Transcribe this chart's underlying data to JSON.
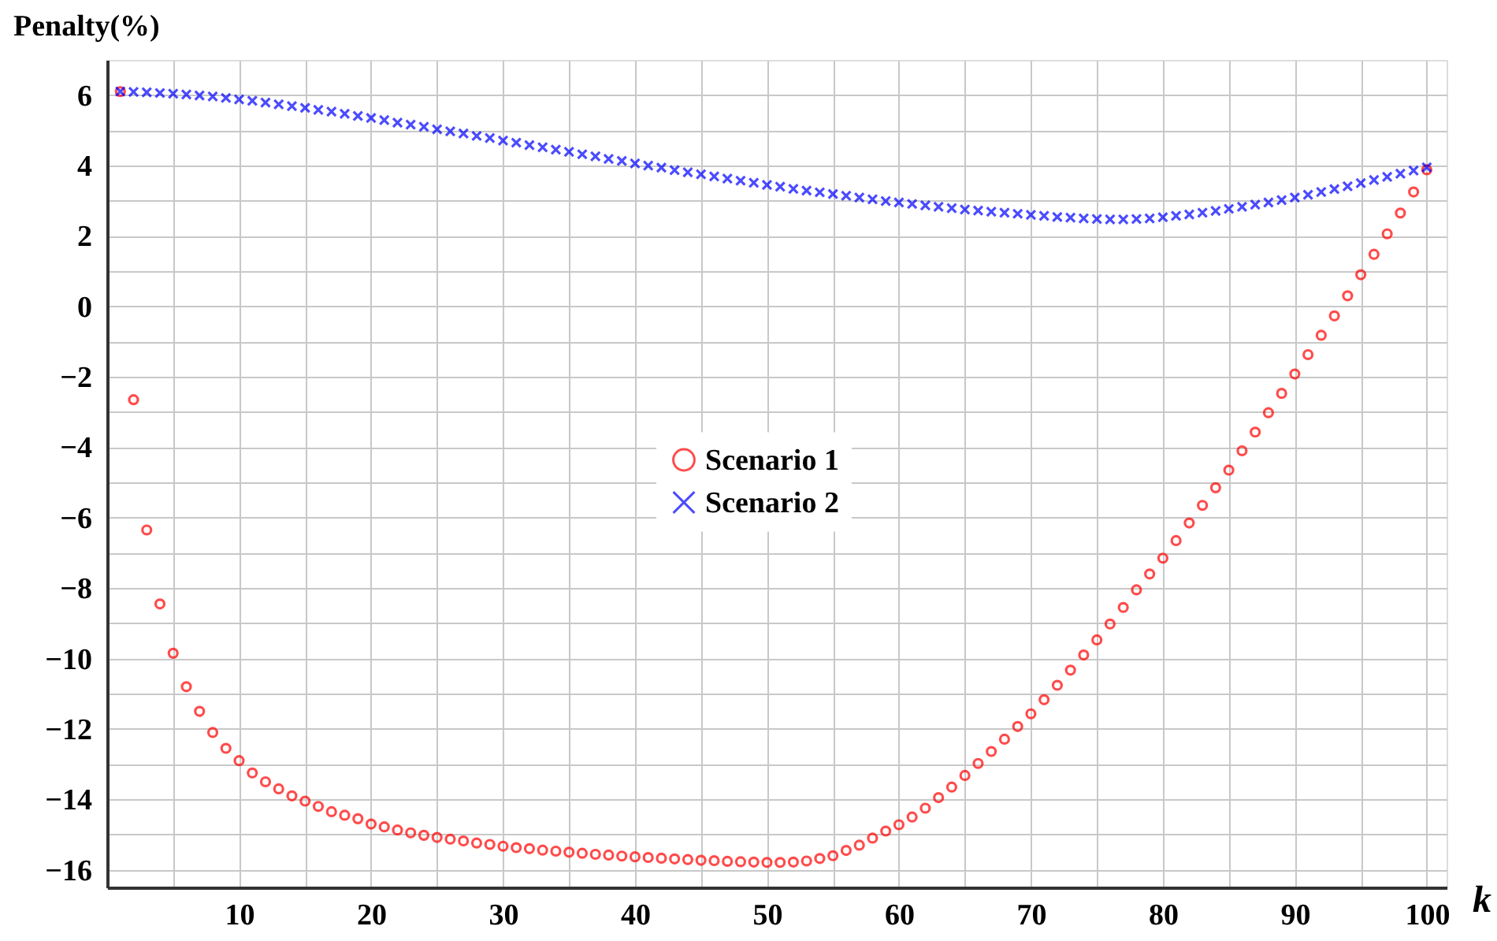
{
  "chart_data": {
    "type": "scatter",
    "xlabel": "k",
    "ylabel": "Penalty(%)",
    "x": [
      1,
      2,
      3,
      4,
      5,
      6,
      7,
      8,
      9,
      10,
      11,
      12,
      13,
      14,
      15,
      16,
      17,
      18,
      19,
      20,
      21,
      22,
      23,
      24,
      25,
      26,
      27,
      28,
      29,
      30,
      31,
      32,
      33,
      34,
      35,
      36,
      37,
      38,
      39,
      40,
      41,
      42,
      43,
      44,
      45,
      46,
      47,
      48,
      49,
      50,
      51,
      52,
      53,
      54,
      55,
      56,
      57,
      58,
      59,
      60,
      61,
      62,
      63,
      64,
      65,
      66,
      67,
      68,
      69,
      70,
      71,
      72,
      73,
      74,
      75,
      76,
      77,
      78,
      79,
      80,
      81,
      82,
      83,
      84,
      85,
      86,
      87,
      88,
      89,
      90,
      91,
      92,
      93,
      94,
      95,
      96,
      97,
      98,
      99,
      100
    ],
    "series": [
      {
        "name": "Scenario 1",
        "color": "#ff0000",
        "marker": "circle",
        "values": [
          6.1,
          -2.65,
          -6.35,
          -8.45,
          -9.85,
          -10.8,
          -11.5,
          -12.1,
          -12.55,
          -12.9,
          -13.25,
          -13.5,
          -13.7,
          -13.9,
          -14.05,
          -14.2,
          -14.35,
          -14.45,
          -14.55,
          -14.7,
          -14.78,
          -14.87,
          -14.95,
          -15.02,
          -15.08,
          -15.13,
          -15.18,
          -15.24,
          -15.28,
          -15.33,
          -15.37,
          -15.4,
          -15.44,
          -15.47,
          -15.5,
          -15.53,
          -15.56,
          -15.58,
          -15.61,
          -15.63,
          -15.65,
          -15.67,
          -15.69,
          -15.71,
          -15.73,
          -15.74,
          -15.76,
          -15.77,
          -15.78,
          -15.79,
          -15.79,
          -15.78,
          -15.75,
          -15.68,
          -15.6,
          -15.45,
          -15.3,
          -15.1,
          -14.9,
          -14.72,
          -14.5,
          -14.25,
          -13.95,
          -13.65,
          -13.32,
          -12.98,
          -12.64,
          -12.29,
          -11.93,
          -11.57,
          -11.17,
          -10.76,
          -10.33,
          -9.9,
          -9.47,
          -9.02,
          -8.55,
          -8.05,
          -7.6,
          -7.15,
          -6.65,
          -6.15,
          -5.65,
          -5.15,
          -4.65,
          -4.1,
          -3.57,
          -3.02,
          -2.47,
          -1.92,
          -1.37,
          -0.82,
          -0.27,
          0.3,
          0.9,
          1.48,
          2.06,
          2.65,
          3.25,
          3.88
        ]
      },
      {
        "name": "Scenario 2",
        "color": "#0000ff",
        "marker": "cross",
        "values": [
          6.1,
          6.09,
          6.08,
          6.06,
          6.04,
          6.02,
          5.99,
          5.96,
          5.92,
          5.88,
          5.84,
          5.79,
          5.74,
          5.69,
          5.64,
          5.58,
          5.53,
          5.47,
          5.41,
          5.35,
          5.29,
          5.22,
          5.16,
          5.1,
          5.03,
          4.97,
          4.91,
          4.84,
          4.78,
          4.71,
          4.65,
          4.58,
          4.52,
          4.45,
          4.39,
          4.32,
          4.26,
          4.19,
          4.13,
          4.06,
          4.0,
          3.94,
          3.87,
          3.81,
          3.75,
          3.69,
          3.63,
          3.57,
          3.51,
          3.45,
          3.4,
          3.34,
          3.29,
          3.24,
          3.19,
          3.14,
          3.09,
          3.04,
          2.99,
          2.95,
          2.91,
          2.87,
          2.83,
          2.79,
          2.75,
          2.72,
          2.69,
          2.66,
          2.63,
          2.6,
          2.57,
          2.54,
          2.52,
          2.5,
          2.48,
          2.47,
          2.47,
          2.48,
          2.5,
          2.53,
          2.57,
          2.61,
          2.66,
          2.71,
          2.77,
          2.83,
          2.89,
          2.95,
          3.02,
          3.09,
          3.17,
          3.25,
          3.33,
          3.41,
          3.5,
          3.59,
          3.68,
          3.77,
          3.86,
          3.95
        ]
      }
    ],
    "xlim": [
      0,
      101.5
    ],
    "xticks": [
      {
        "value": 5,
        "label": null
      },
      10,
      {
        "value": 15,
        "label": null
      },
      20,
      {
        "value": 25,
        "label": null
      },
      30,
      {
        "value": 35,
        "label": null
      },
      40,
      {
        "value": 45,
        "label": null
      },
      50,
      {
        "value": 55,
        "label": null
      },
      60,
      {
        "value": 65,
        "label": null
      },
      70,
      {
        "value": 75,
        "label": null
      },
      80,
      {
        "value": 85,
        "label": null
      },
      90,
      {
        "value": 95,
        "label": null
      },
      100
    ],
    "ylim": [
      -16.5,
      7
    ],
    "yticks": [
      -16,
      {
        "value": -15,
        "label": null
      },
      -14,
      {
        "value": -13,
        "label": null
      },
      -12,
      {
        "value": -11,
        "label": null
      },
      -10,
      {
        "value": -9,
        "label": null
      },
      -8,
      {
        "value": -7,
        "label": null
      },
      -6,
      {
        "value": -5,
        "label": null
      },
      -4,
      {
        "value": -3,
        "label": null
      },
      -2,
      {
        "value": -1,
        "label": null
      },
      0,
      {
        "value": 1,
        "label": null
      },
      2,
      {
        "value": 3,
        "label": null
      },
      4,
      {
        "value": 5,
        "label": null
      },
      6
    ],
    "grid": true,
    "legend": "center"
  }
}
